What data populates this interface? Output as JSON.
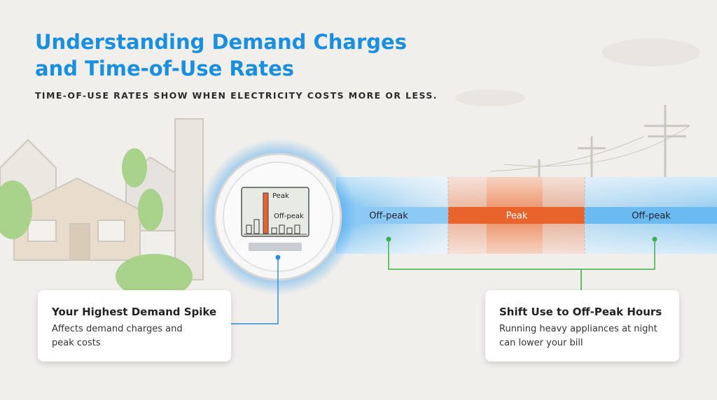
{
  "title": [
    "Understanding Demand Charges",
    "and Time-of-Use Rates"
  ],
  "subtitle": "TIME-OF-USE RATES SHOW WHEN ELECTRICITY COSTS MORE OR LESS.",
  "meter": {
    "peak_label": "Peak",
    "off_peak_label": "Off-peak"
  },
  "band": {
    "labels": [
      "Off-peak",
      "Peak",
      "Off-peak"
    ]
  },
  "cards": [
    {
      "title": "Your Highest Demand Spike",
      "body": [
        "Affects demand charges and",
        "peak costs"
      ]
    },
    {
      "title": "Shift Use to Off-Peak Hours",
      "body": [
        "Running heavy appliances at night",
        "can lower your bill"
      ]
    }
  ]
}
